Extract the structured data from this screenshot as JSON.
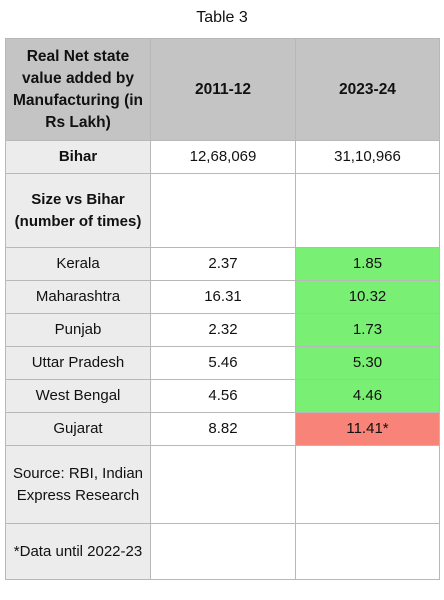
{
  "caption": "Table 3",
  "header": {
    "c1": "Real Net state value added by Manufacturing (in Rs Lakh)",
    "c2": "2011-12",
    "c3": "2023-24"
  },
  "bihar": {
    "label": "Bihar",
    "v1": "12,68,069",
    "v2": "31,10,966"
  },
  "size_label": "Size vs Bihar (number of times)",
  "rows": [
    {
      "state": "Kerala",
      "v1": "2.37",
      "v2": "1.85",
      "status": "green"
    },
    {
      "state": "Maharashtra",
      "v1": "16.31",
      "v2": "10.32",
      "status": "green"
    },
    {
      "state": "Punjab",
      "v1": "2.32",
      "v2": "1.73",
      "status": "green"
    },
    {
      "state": "Uttar Pradesh",
      "v1": "5.46",
      "v2": "5.30",
      "status": "green"
    },
    {
      "state": "West Bengal",
      "v1": "4.56",
      "v2": "4.46",
      "status": "green"
    },
    {
      "state": "Gujarat",
      "v1": "8.82",
      "v2": "11.41*",
      "status": "red"
    }
  ],
  "source": "Source: RBI, Indian Express Research",
  "note": "*Data until 2022-23",
  "colors": {
    "header_bg": "#c4c4c4",
    "row_bg": "#ececec",
    "green": "#79ef73",
    "red": "#f88378"
  }
}
